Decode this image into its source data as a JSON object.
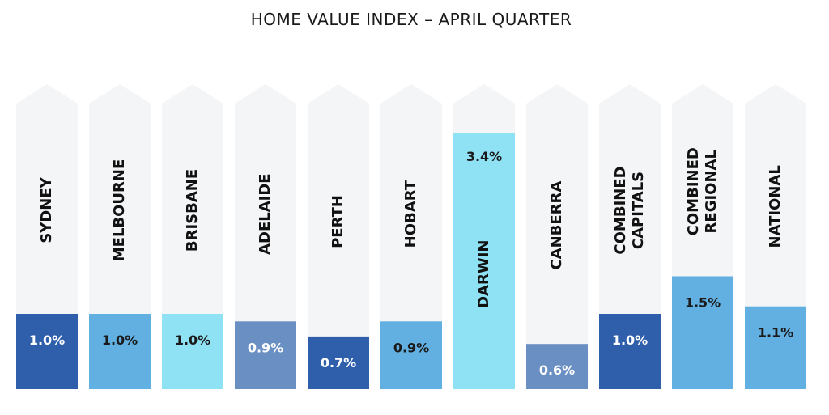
{
  "chart_data": {
    "type": "bar",
    "title": "HOME VALUE INDEX – APRIL QUARTER",
    "categories": [
      [
        "SYDNEY"
      ],
      [
        "MELBOURNE"
      ],
      [
        "BRISBANE"
      ],
      [
        "ADELAIDE"
      ],
      [
        "PERTH"
      ],
      [
        "HOBART"
      ],
      [
        "DARWIN"
      ],
      [
        "CANBERRA"
      ],
      [
        "COMBINED",
        "CAPITALS"
      ],
      [
        "COMBINED",
        "REGIONAL"
      ],
      [
        "NATIONAL"
      ]
    ],
    "values": [
      1.0,
      1.0,
      1.0,
      0.9,
      0.7,
      0.9,
      3.4,
      0.6,
      1.0,
      1.5,
      1.1
    ],
    "value_labels": [
      "1.0%",
      "1.0%",
      "1.0%",
      "0.9%",
      "0.7%",
      "0.9%",
      "3.4%",
      "0.6%",
      "1.0%",
      "1.5%",
      "1.1%"
    ],
    "bar_colors": [
      "#2f5fab",
      "#62b0e2",
      "#8fe2f4",
      "#6a8fc2",
      "#2f5fab",
      "#62b0e2",
      "#8fe2f4",
      "#6a8fc2",
      "#2f5fab",
      "#62b0e2",
      "#62b0e2"
    ],
    "value_text_colors": [
      "#ffffff",
      "#1a1a1a",
      "#1a1a1a",
      "#ffffff",
      "#ffffff",
      "#1a1a1a",
      "#1a1a1a",
      "#ffffff",
      "#ffffff",
      "#1a1a1a",
      "#1a1a1a"
    ],
    "background_color": "#f4f5f7",
    "grid": false,
    "legend": "none"
  }
}
